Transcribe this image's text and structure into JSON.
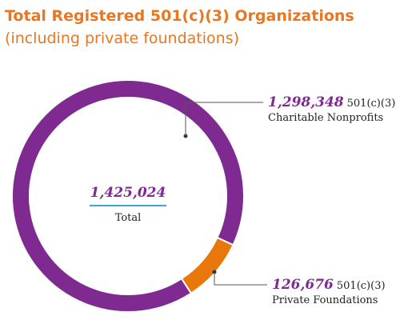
{
  "chart_data": {
    "type": "donut",
    "title": "Total Registered 501(c)(3) Organizations",
    "subtitle": "(including private foundations)",
    "categories": [
      "Charitable Nonprofits",
      "Private Foundations"
    ],
    "values": [
      1298348,
      126676
    ],
    "value_labels": [
      "1,298,348",
      "126,676"
    ],
    "colors": [
      "#7e2a90",
      "#e8780c"
    ],
    "unit": "501(c)(3)",
    "total": {
      "value": 1425024,
      "label": "1,425,024"
    },
    "total_caption": "Total"
  }
}
